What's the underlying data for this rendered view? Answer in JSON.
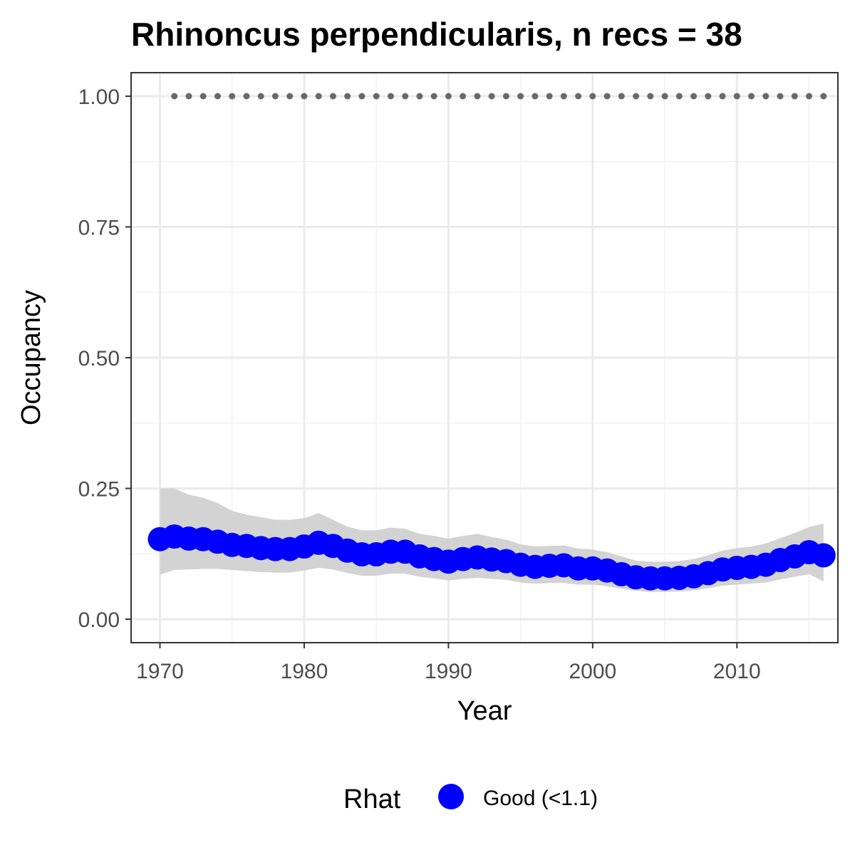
{
  "chart_data": {
    "type": "line",
    "title": "Rhinoncus perpendicularis, n recs = 38",
    "xlabel": "Year",
    "ylabel": "Occupancy",
    "xlim": [
      1968,
      2017
    ],
    "ylim": [
      -0.045,
      1.045
    ],
    "x_ticks": [
      1970,
      1980,
      1990,
      2000,
      2010
    ],
    "x_tick_labels": [
      "1970",
      "1980",
      "1990",
      "2000",
      "2010"
    ],
    "y_ticks": [
      0,
      0.25,
      0.5,
      0.75,
      1
    ],
    "y_tick_labels": [
      "0.00",
      "0.25",
      "0.50",
      "0.75",
      "1.00"
    ],
    "grid": true,
    "legend": {
      "title": "Rhat",
      "position": "bottom",
      "entries": [
        {
          "label": "Good (<1.1)",
          "color": "#0000FF"
        }
      ]
    },
    "colors": {
      "estimate": "#0000FF",
      "ribbon": "#d3d3d3",
      "reference": "#696969"
    },
    "series": [
      {
        "name": "Good (<1.1)",
        "x": [
          1970,
          1971,
          1972,
          1973,
          1974,
          1975,
          1976,
          1977,
          1978,
          1979,
          1980,
          1981,
          1982,
          1983,
          1984,
          1985,
          1986,
          1987,
          1988,
          1989,
          1990,
          1991,
          1992,
          1993,
          1994,
          1995,
          1996,
          1997,
          1998,
          1999,
          2000,
          2001,
          2002,
          2003,
          2004,
          2005,
          2006,
          2007,
          2008,
          2009,
          2010,
          2011,
          2012,
          2013,
          2014,
          2015,
          2016
        ],
        "y": [
          0.153,
          0.158,
          0.154,
          0.153,
          0.148,
          0.142,
          0.14,
          0.136,
          0.134,
          0.134,
          0.139,
          0.146,
          0.14,
          0.131,
          0.124,
          0.124,
          0.129,
          0.129,
          0.12,
          0.115,
          0.11,
          0.115,
          0.118,
          0.114,
          0.111,
          0.104,
          0.1,
          0.102,
          0.103,
          0.097,
          0.097,
          0.093,
          0.086,
          0.08,
          0.078,
          0.078,
          0.079,
          0.082,
          0.088,
          0.095,
          0.098,
          0.1,
          0.104,
          0.113,
          0.12,
          0.128,
          0.122
        ],
        "lower": [
          0.085,
          0.094,
          0.095,
          0.096,
          0.096,
          0.094,
          0.092,
          0.09,
          0.089,
          0.089,
          0.093,
          0.098,
          0.095,
          0.088,
          0.083,
          0.083,
          0.087,
          0.087,
          0.081,
          0.078,
          0.074,
          0.077,
          0.079,
          0.077,
          0.075,
          0.07,
          0.068,
          0.069,
          0.069,
          0.066,
          0.066,
          0.063,
          0.058,
          0.054,
          0.052,
          0.052,
          0.053,
          0.055,
          0.059,
          0.064,
          0.066,
          0.068,
          0.07,
          0.076,
          0.081,
          0.086,
          0.072
        ],
        "upper": [
          0.25,
          0.25,
          0.238,
          0.232,
          0.222,
          0.207,
          0.2,
          0.195,
          0.19,
          0.19,
          0.193,
          0.203,
          0.19,
          0.177,
          0.17,
          0.17,
          0.175,
          0.173,
          0.163,
          0.159,
          0.154,
          0.159,
          0.163,
          0.157,
          0.152,
          0.143,
          0.139,
          0.14,
          0.141,
          0.135,
          0.133,
          0.128,
          0.12,
          0.112,
          0.11,
          0.11,
          0.111,
          0.115,
          0.122,
          0.131,
          0.136,
          0.139,
          0.145,
          0.155,
          0.165,
          0.176,
          0.183
        ]
      },
      {
        "name": "",
        "style": "dotted",
        "x": [
          1971,
          2016
        ],
        "y": [
          1.0,
          1.0
        ]
      }
    ]
  }
}
